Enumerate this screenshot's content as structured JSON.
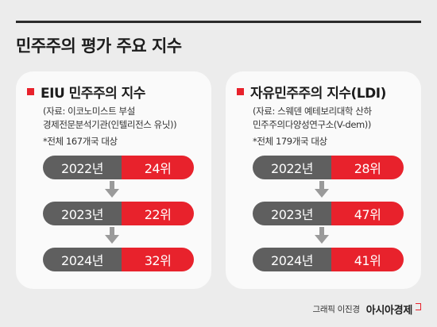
{
  "title": "민주주의 평가 주요 지수",
  "cards": [
    {
      "title": "EIU 민주주의 지수",
      "source_line1": "(자료: 이코노미스트 부설",
      "source_line2": "경제전문분석기관(인텔리전스 유닛))",
      "note": "*전체 167개국 대상",
      "rows": [
        {
          "year": "2022년",
          "rank": "24위"
        },
        {
          "year": "2023년",
          "rank": "22위"
        },
        {
          "year": "2024년",
          "rank": "32위"
        }
      ]
    },
    {
      "title": "자유민주주의 지수(LDI)",
      "source_line1": "(자료: 스웨덴 예테보리대학 산하",
      "source_line2": "민주주의다양성연구소(V-dem))",
      "note": "*전체 179개국 대상",
      "rows": [
        {
          "year": "2022년",
          "rank": "28위"
        },
        {
          "year": "2023년",
          "rank": "47위"
        },
        {
          "year": "2024년",
          "rank": "41위"
        }
      ]
    }
  ],
  "footer": {
    "credit": "그래픽 이진경",
    "brand": "아시아경제"
  },
  "colors": {
    "accent": "#e8222c",
    "year_bg": "#5f5f5f",
    "arrow": "#9a9a9a",
    "page_bg": "#ececec",
    "card_bg": "#fafafa"
  }
}
